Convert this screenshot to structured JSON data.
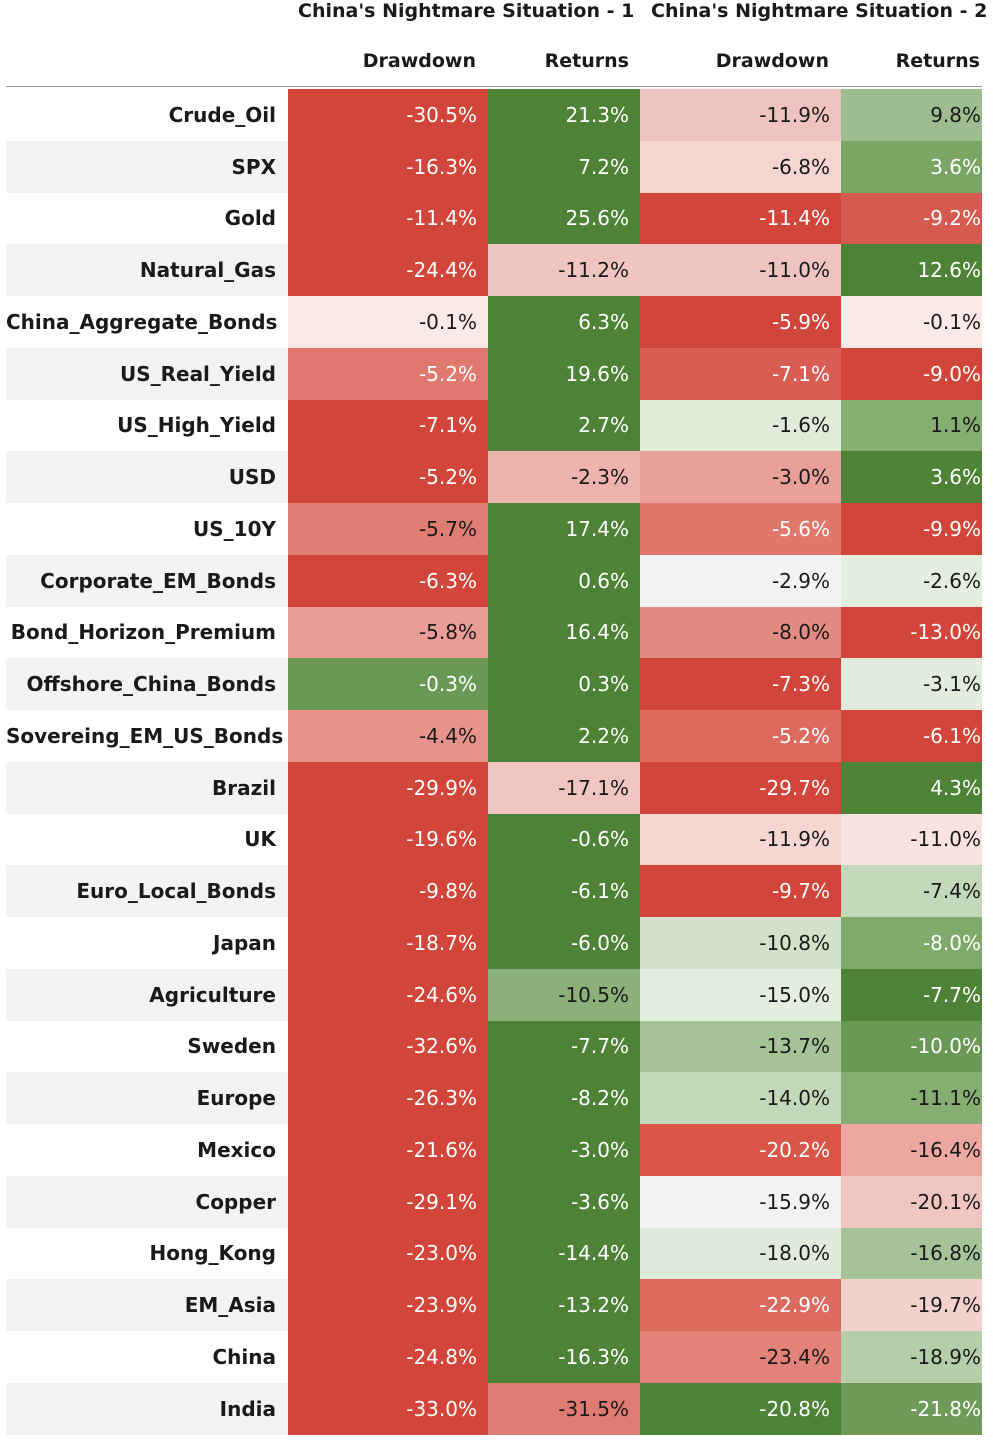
{
  "chart_data": {
    "type": "table",
    "groups": [
      "China's Nightmare Situation - 1",
      "China's Nightmare Situation - 2"
    ],
    "columns": [
      "Drawdown",
      "Returns",
      "Drawdown",
      "Returns"
    ],
    "rows": [
      {
        "label": "Crude_Oil",
        "values": [
          "-30.5%",
          "21.3%",
          "-11.9%",
          "9.8%"
        ]
      },
      {
        "label": "SPX",
        "values": [
          "-16.3%",
          "7.2%",
          "-6.8%",
          "3.6%"
        ]
      },
      {
        "label": "Gold",
        "values": [
          "-11.4%",
          "25.6%",
          "-11.4%",
          "-9.2%"
        ]
      },
      {
        "label": "Natural_Gas",
        "values": [
          "-24.4%",
          "-11.2%",
          "-11.0%",
          "12.6%"
        ]
      },
      {
        "label": "China_Aggregate_Bonds",
        "values": [
          "-0.1%",
          "6.3%",
          "-5.9%",
          "-0.1%"
        ]
      },
      {
        "label": "US_Real_Yield",
        "values": [
          "-5.2%",
          "19.6%",
          "-7.1%",
          "-9.0%"
        ]
      },
      {
        "label": "US_High_Yield",
        "values": [
          "-7.1%",
          "2.7%",
          "-1.6%",
          "1.1%"
        ]
      },
      {
        "label": "USD",
        "values": [
          "-5.2%",
          "-2.3%",
          "-3.0%",
          "3.6%"
        ]
      },
      {
        "label": "US_10Y",
        "values": [
          "-5.7%",
          "17.4%",
          "-5.6%",
          "-9.9%"
        ]
      },
      {
        "label": "Corporate_EM_Bonds",
        "values": [
          "-6.3%",
          "0.6%",
          "-2.9%",
          "-2.6%"
        ]
      },
      {
        "label": "Bond_Horizon_Premium",
        "values": [
          "-5.8%",
          "16.4%",
          "-8.0%",
          "-13.0%"
        ]
      },
      {
        "label": "Offshore_China_Bonds",
        "values": [
          "-0.3%",
          "0.3%",
          "-7.3%",
          "-3.1%"
        ]
      },
      {
        "label": "Sovereing_EM_US_Bonds",
        "values": [
          "-4.4%",
          "2.2%",
          "-5.2%",
          "-6.1%"
        ]
      },
      {
        "label": "Brazil",
        "values": [
          "-29.9%",
          "-17.1%",
          "-29.7%",
          "4.3%"
        ]
      },
      {
        "label": "UK",
        "values": [
          "-19.6%",
          "-0.6%",
          "-11.9%",
          "-11.0%"
        ]
      },
      {
        "label": "Euro_Local_Bonds",
        "values": [
          "-9.8%",
          "-6.1%",
          "-9.7%",
          "-7.4%"
        ]
      },
      {
        "label": "Japan",
        "values": [
          "-18.7%",
          "-6.0%",
          "-10.8%",
          "-8.0%"
        ]
      },
      {
        "label": "Agriculture",
        "values": [
          "-24.6%",
          "-10.5%",
          "-15.0%",
          "-7.7%"
        ]
      },
      {
        "label": "Sweden",
        "values": [
          "-32.6%",
          "-7.7%",
          "-13.7%",
          "-10.0%"
        ]
      },
      {
        "label": "Europe",
        "values": [
          "-26.3%",
          "-8.2%",
          "-14.0%",
          "-11.1%"
        ]
      },
      {
        "label": "Mexico",
        "values": [
          "-21.6%",
          "-3.0%",
          "-20.2%",
          "-16.4%"
        ]
      },
      {
        "label": "Copper",
        "values": [
          "-29.1%",
          "-3.6%",
          "-15.9%",
          "-20.1%"
        ]
      },
      {
        "label": "Hong_Kong",
        "values": [
          "-23.0%",
          "-14.4%",
          "-18.0%",
          "-16.8%"
        ]
      },
      {
        "label": "EM_Asia",
        "values": [
          "-23.9%",
          "-13.2%",
          "-22.9%",
          "-19.7%"
        ]
      },
      {
        "label": "China",
        "values": [
          "-24.8%",
          "-16.3%",
          "-23.4%",
          "-18.9%"
        ]
      },
      {
        "label": "India",
        "values": [
          "-33.0%",
          "-31.5%",
          "-20.8%",
          "-21.8%"
        ]
      }
    ],
    "cell_colors": [
      [
        "#d2453a",
        "#4d8237",
        "#efc3bf",
        "#9dbc8f"
      ],
      [
        "#d2453a",
        "#4d8237",
        "#f5d4d1",
        "#7aa565"
      ],
      [
        "#d2453a",
        "#4d8237",
        "#d2453a",
        "#d65a4f"
      ],
      [
        "#d2453a",
        "#f0c4c0",
        "#efc3bf",
        "#4d8237"
      ],
      [
        "#fbe9e7",
        "#4d8237",
        "#d2453a",
        "#fbe9e7"
      ],
      [
        "#df786e",
        "#4d8237",
        "#d85d52",
        "#d2453a"
      ],
      [
        "#d2453a",
        "#4d8237",
        "#e0ebda",
        "#86ad72"
      ],
      [
        "#d2453a",
        "#eeb3ad",
        "#e8a098",
        "#4d8237"
      ],
      [
        "#e07d73",
        "#4d8237",
        "#e0776d",
        "#d2453a"
      ],
      [
        "#d2453a",
        "#4d8237",
        "#f3f3f3",
        "#e4eedf"
      ],
      [
        "#e99d96",
        "#4d8237",
        "#e28b82",
        "#d2453a"
      ],
      [
        "#6a9855",
        "#4d8237",
        "#d2453a",
        "#e2ecdc"
      ],
      [
        "#e6938b",
        "#4d8237",
        "#dc6a5f",
        "#d2453a"
      ],
      [
        "#d2453a",
        "#f1c6c2",
        "#d2453a",
        "#4d8237"
      ],
      [
        "#d2453a",
        "#4d8237",
        "#f5d6d3",
        "#f9e3e1"
      ],
      [
        "#d2453a",
        "#4d8237",
        "#d2453a",
        "#c3d8b9"
      ],
      [
        "#d2453a",
        "#4d8237",
        "#d2e2ca",
        "#80a96c"
      ],
      [
        "#d2453a",
        "#8cb07a",
        "#e4eedf",
        "#4d8237"
      ],
      [
        "#d2453a",
        "#4d8237",
        "#a6c398",
        "#6a9855"
      ],
      [
        "#d2453a",
        "#4d8237",
        "#c3d8b9",
        "#86ad72"
      ],
      [
        "#d2453a",
        "#4d8237",
        "#d85548",
        "#eba7a0"
      ],
      [
        "#d2453a",
        "#4d8237",
        "#f2f2f2",
        "#f1c6c2"
      ],
      [
        "#d2453a",
        "#4d8237",
        "#dfeada",
        "#a6c398"
      ],
      [
        "#d2453a",
        "#4d8237",
        "#dc6a5f",
        "#f3d2ce"
      ],
      [
        "#d2453a",
        "#4d8237",
        "#e28279",
        "#b5cea9"
      ],
      [
        "#d2453a",
        "#df7b71",
        "#4d8237",
        "#6e9b59"
      ]
    ]
  }
}
